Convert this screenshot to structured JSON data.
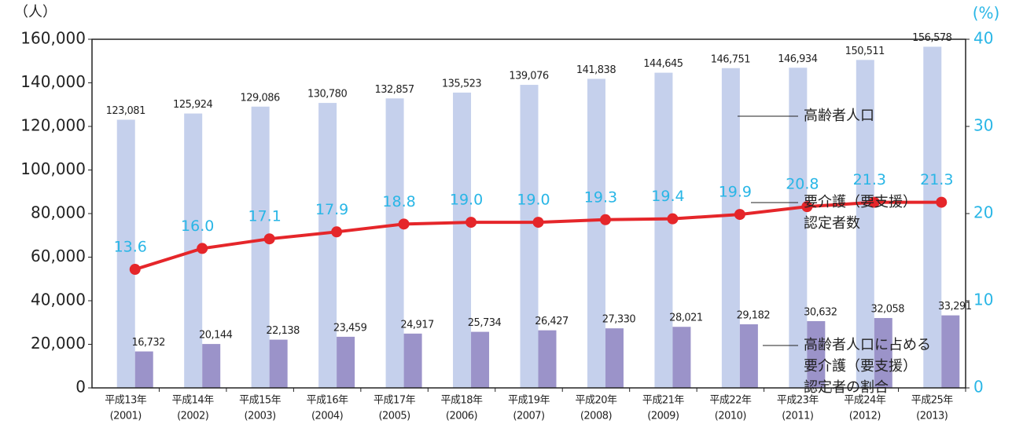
{
  "chart_data": {
    "type": "bar_line",
    "y_unit": "（人）",
    "y2_unit": "(%)",
    "categories": [
      [
        "平成13年",
        "(2001)"
      ],
      [
        "平成14年",
        "(2002)"
      ],
      [
        "平成15年",
        "(2003)"
      ],
      [
        "平成16年",
        "(2004)"
      ],
      [
        "平成17年",
        "(2005)"
      ],
      [
        "平成18年",
        "(2006)"
      ],
      [
        "平成19年",
        "(2007)"
      ],
      [
        "平成20年",
        "(2008)"
      ],
      [
        "平成21年",
        "(2009)"
      ],
      [
        "平成22年",
        "(2010)"
      ],
      [
        "平成23年",
        "(2011)"
      ],
      [
        "平成24年",
        "(2012)"
      ],
      [
        "平成25年",
        "(2013)"
      ]
    ],
    "series": [
      {
        "name": [
          "高齢者人口"
        ],
        "color": "#c5d0ec",
        "kind": "bar",
        "values": [
          123081,
          125924,
          129086,
          130780,
          132857,
          135523,
          139076,
          141838,
          144645,
          146751,
          146934,
          150511,
          156578
        ],
        "value_labels": [
          "123,081",
          "125,924",
          "129,086",
          "130,780",
          "132,857",
          "135,523",
          "139,076",
          "141,838",
          "144,645",
          "146,751",
          "146,934",
          "150,511",
          "156,578"
        ]
      },
      {
        "name": [
          "要介護（要支援）",
          "認定者数"
        ],
        "color": "#9b93c9",
        "kind": "bar",
        "values": [
          16732,
          20144,
          22138,
          23459,
          24917,
          25734,
          26427,
          27330,
          28021,
          29182,
          30632,
          32058,
          33291
        ],
        "value_labels": [
          "16,732",
          "20,144",
          "22,138",
          "23,459",
          "24,917",
          "25,734",
          "26,427",
          "27,330",
          "28,021",
          "29,182",
          "30,632",
          "32,058",
          "33,291"
        ]
      },
      {
        "name": [
          "高齢者人口に占める",
          "要介護（要支援）",
          "認定者の割合"
        ],
        "color": "#e5262a",
        "label_color": "#29b6e6",
        "kind": "line",
        "axis": "y2",
        "values": [
          13.6,
          16.0,
          17.1,
          17.9,
          18.8,
          19.0,
          19.0,
          19.3,
          19.4,
          19.9,
          20.8,
          21.3,
          21.3
        ],
        "value_labels": [
          "13.6",
          "16.0",
          "17.1",
          "17.9",
          "18.8",
          "19.0",
          "19.0",
          "19.3",
          "19.4",
          "19.9",
          "20.8",
          "21.3",
          "21.3"
        ]
      }
    ],
    "ylim": [
      0,
      160000
    ],
    "yticks": [
      0,
      {
        "value": 20000,
        "label": "20,000"
      },
      {
        "value": 40000,
        "label": "40,000"
      },
      {
        "value": 60000,
        "label": "60,000"
      },
      {
        "value": 80000,
        "label": "80,000"
      },
      {
        "value": 100000,
        "label": "100,000"
      },
      {
        "value": 120000,
        "label": "120,000"
      },
      {
        "value": 140000,
        "label": "140,000"
      },
      {
        "value": 160000,
        "label": "160,000"
      }
    ],
    "y2lim": [
      0,
      40
    ],
    "y2ticks": [
      0,
      10,
      20,
      30,
      40
    ]
  }
}
